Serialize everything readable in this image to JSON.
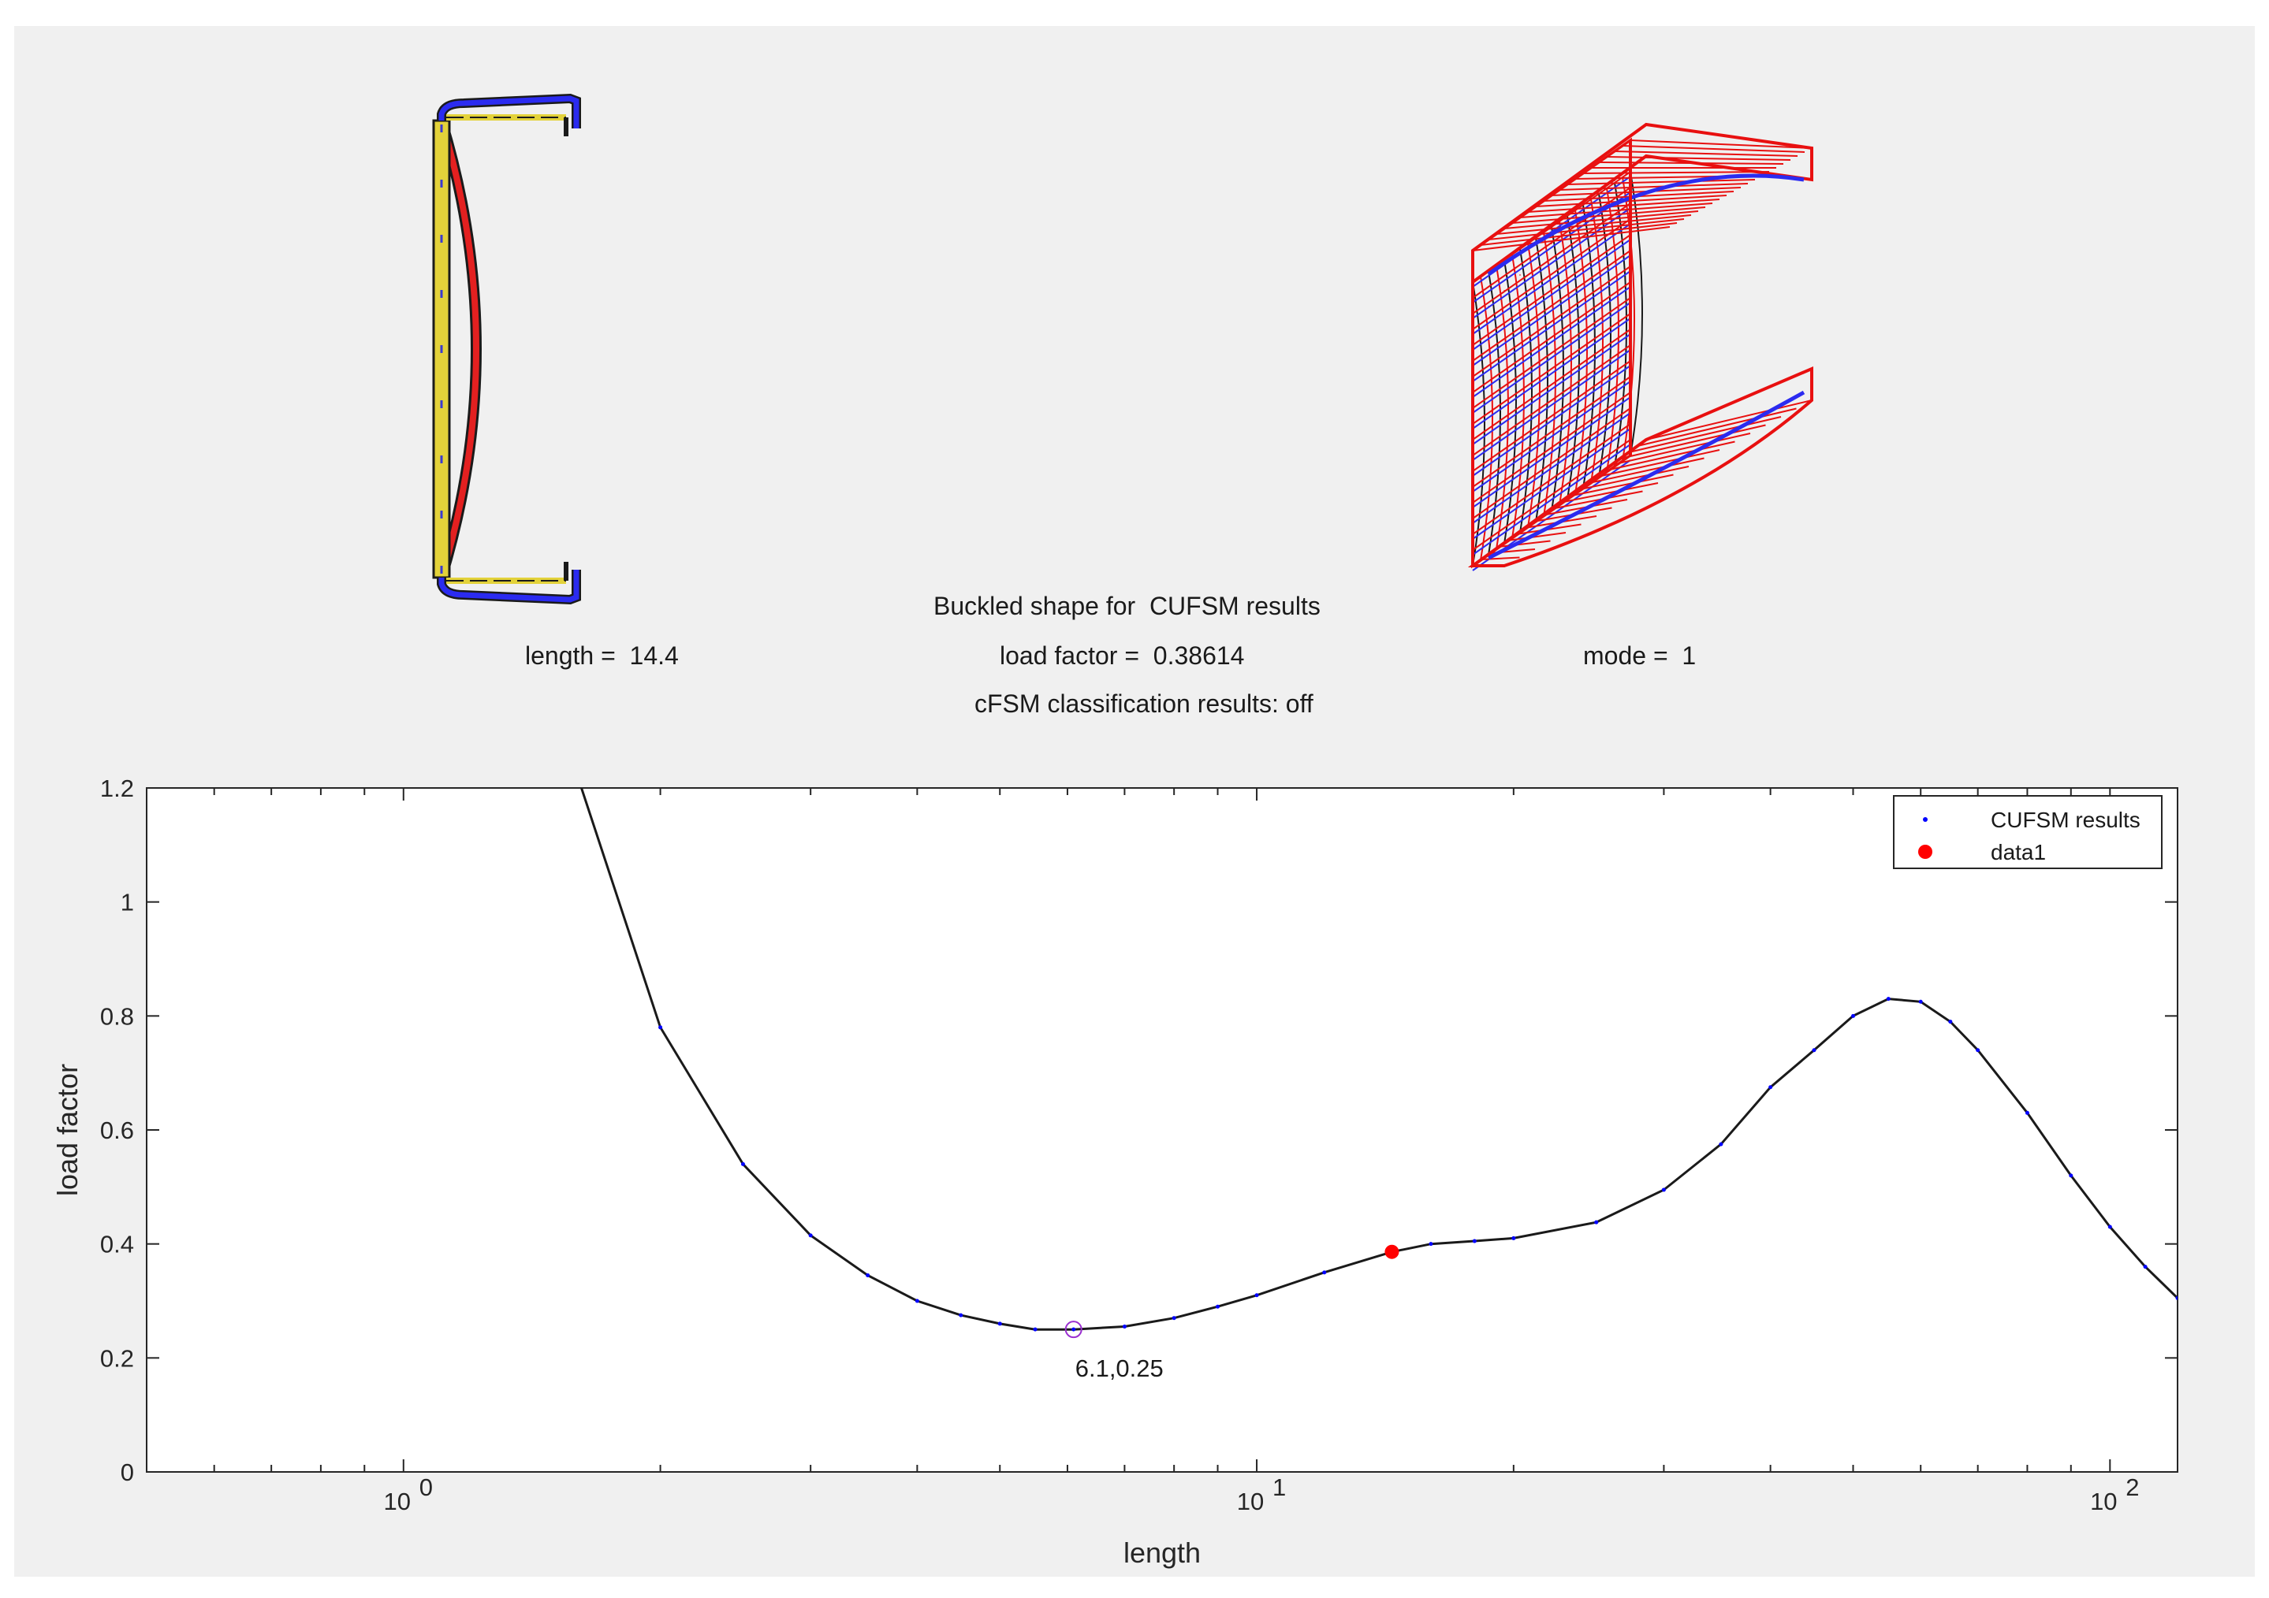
{
  "info": {
    "title": "Buckled shape for  CUFSM results",
    "length": "length =  14.4",
    "load_factor": "load factor =  0.38614",
    "mode": "mode =  1",
    "classification": "cFSM classification results: off"
  },
  "chart_data": {
    "type": "line",
    "xscale": "log",
    "xlabel": "length",
    "ylabel": "load factor",
    "xlim": [
      0.5,
      120
    ],
    "ylim": [
      0,
      1.2
    ],
    "x_ticks": [
      1,
      10,
      100
    ],
    "x_tick_labels": [
      {
        "base": "10",
        "exp": "0"
      },
      {
        "base": "10",
        "exp": "1"
      },
      {
        "base": "10",
        "exp": "2"
      }
    ],
    "y_ticks": [
      0,
      0.2,
      0.4,
      0.6,
      0.8,
      1,
      1.2
    ],
    "y_tick_labels": [
      "0",
      "0.2",
      "0.4",
      "0.6",
      "0.8",
      "1",
      "1.2"
    ],
    "series": [
      {
        "name": "CUFSM results",
        "x": [
          1.6,
          2,
          2.5,
          3,
          3.5,
          4,
          4.5,
          5,
          5.5,
          6.1,
          7,
          8,
          9,
          10,
          12,
          14.4,
          16,
          18,
          20,
          25,
          30,
          35,
          40,
          45,
          50,
          55,
          60,
          65,
          70,
          80,
          90,
          100,
          110,
          120
        ],
        "y": [
          1.22,
          0.78,
          0.54,
          0.415,
          0.345,
          0.3,
          0.275,
          0.26,
          0.25,
          0.25,
          0.255,
          0.27,
          0.29,
          0.31,
          0.35,
          0.386,
          0.4,
          0.405,
          0.41,
          0.438,
          0.495,
          0.575,
          0.675,
          0.74,
          0.8,
          0.83,
          0.825,
          0.79,
          0.74,
          0.63,
          0.52,
          0.43,
          0.36,
          0.305
        ],
        "color": "#1a1a1a",
        "marker_color": "#0000ff"
      },
      {
        "name": "data1",
        "x": [
          14.4
        ],
        "y": [
          0.38614
        ],
        "color": "#ff0000"
      }
    ],
    "annotations": [
      {
        "x": 6.1,
        "y": 0.25,
        "text": "6.1,0.25",
        "marker_color": "#9b30d0"
      }
    ],
    "legend": {
      "position": "top-right",
      "entries": [
        "CUFSM results",
        "data1"
      ]
    },
    "grid": false
  }
}
